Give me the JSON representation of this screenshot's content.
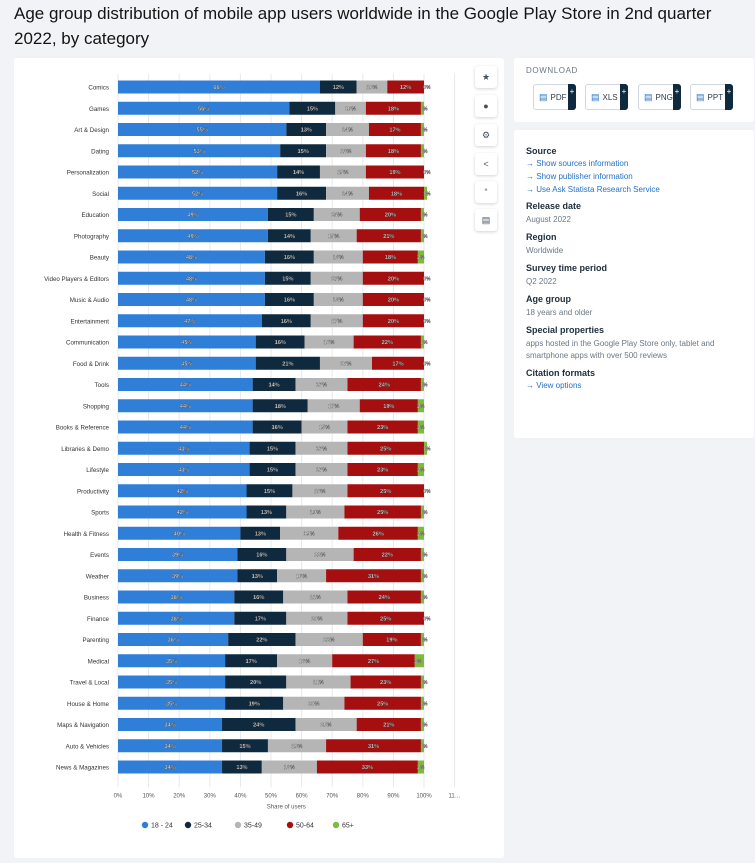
{
  "title": "Age group distribution of mobile app users worldwide in the Google Play Store in 2nd quarter 2022, by category",
  "toolbar": [
    {
      "name": "star-icon",
      "glyph": "★"
    },
    {
      "name": "bell-icon",
      "glyph": "●"
    },
    {
      "name": "gear-icon",
      "glyph": "⚙"
    },
    {
      "name": "share-icon",
      "glyph": "<"
    },
    {
      "name": "quote-icon",
      "glyph": "“"
    },
    {
      "name": "print-icon",
      "glyph": "▤"
    }
  ],
  "download": {
    "label": "DOWNLOAD",
    "buttons": [
      {
        "label": "PDF",
        "icon": "pdf-icon"
      },
      {
        "label": "XLS",
        "icon": "xls-icon"
      },
      {
        "label": "PNG",
        "icon": "png-icon"
      },
      {
        "label": "PPT",
        "icon": "ppt-icon"
      }
    ]
  },
  "info": {
    "source_heading": "Source",
    "source_links": [
      "Show sources information",
      "Show publisher information",
      "Use Ask Statista Research Service"
    ],
    "release_heading": "Release date",
    "release_value": "August 2022",
    "region_heading": "Region",
    "region_value": "Worldwide",
    "period_heading": "Survey time period",
    "period_value": "Q2 2022",
    "age_heading": "Age group",
    "age_value": "18 years and older",
    "special_heading": "Special properties",
    "special_value": "apps hosted in the Google Play Store only, tablet and smartphone apps with over 500 reviews",
    "citation_heading": "Citation formats",
    "citation_link": "View options"
  },
  "chart_data": {
    "type": "bar",
    "orientation": "horizontal",
    "stacked": true,
    "xlabel": "Share of users",
    "ylabel": "",
    "xlim": [
      0,
      110
    ],
    "xticks": [
      "0%",
      "10%",
      "20%",
      "30%",
      "40%",
      "50%",
      "60%",
      "70%",
      "80%",
      "90%",
      "100%",
      "11…"
    ],
    "legend_position": "bottom",
    "grid": true,
    "categories": [
      "Comics",
      "Games",
      "Art & Design",
      "Dating",
      "Personalization",
      "Social",
      "Education",
      "Photography",
      "Beauty",
      "Video Players & Editors",
      "Music & Audio",
      "Entertainment",
      "Communication",
      "Food & Drink",
      "Tools",
      "Shopping",
      "Books & Reference",
      "Libraries & Demo",
      "Lifestyle",
      "Productivity",
      "Sports",
      "Health & Fitness",
      "Events",
      "Weather",
      "Business",
      "Finance",
      "Parenting",
      "Medical",
      "Travel & Local",
      "House & Home",
      "Maps & Navigation",
      "Auto & Vehicles",
      "News & Magazines"
    ],
    "series": [
      {
        "name": "18 - 24",
        "color": "#2f7ed8",
        "values": [
          66,
          56,
          55,
          53,
          52,
          52,
          49,
          49,
          48,
          48,
          48,
          47,
          45,
          45,
          44,
          44,
          44,
          43,
          43,
          42,
          42,
          40,
          39,
          39,
          38,
          38,
          36,
          35,
          35,
          35,
          34,
          34,
          34
        ]
      },
      {
        "name": "25-34",
        "color": "#0f2a3f",
        "values": [
          12,
          15,
          13,
          15,
          14,
          16,
          15,
          14,
          16,
          15,
          16,
          16,
          16,
          21,
          14,
          18,
          16,
          15,
          15,
          15,
          13,
          13,
          16,
          13,
          16,
          17,
          22,
          17,
          20,
          19,
          24,
          15,
          13
        ]
      },
      {
        "name": "35-49",
        "color": "#b5b5b5",
        "values": [
          10,
          10,
          14,
          13,
          15,
          14,
          15,
          15,
          16,
          17,
          16,
          17,
          16,
          17,
          17,
          17,
          15,
          17,
          17,
          18,
          19,
          19,
          22,
          16,
          21,
          20,
          22,
          18,
          21,
          20,
          20,
          19,
          18
        ]
      },
      {
        "name": "50-64",
        "color": "#a50f0f",
        "values": [
          12,
          18,
          17,
          18,
          19,
          18,
          20,
          21,
          18,
          20,
          20,
          20,
          22,
          17,
          24,
          19,
          23,
          25,
          23,
          25,
          25,
          26,
          22,
          31,
          24,
          25,
          19,
          27,
          23,
          25,
          21,
          31,
          33
        ]
      },
      {
        "name": "65+",
        "color": "#7fba3c",
        "values": [
          0,
          1,
          1,
          1,
          0,
          1,
          1,
          1,
          2,
          0,
          0,
          0,
          1,
          0,
          1,
          2,
          2,
          1,
          2,
          0,
          1,
          2,
          1,
          1,
          1,
          0,
          1,
          3,
          1,
          1,
          1,
          1,
          2
        ]
      }
    ]
  }
}
